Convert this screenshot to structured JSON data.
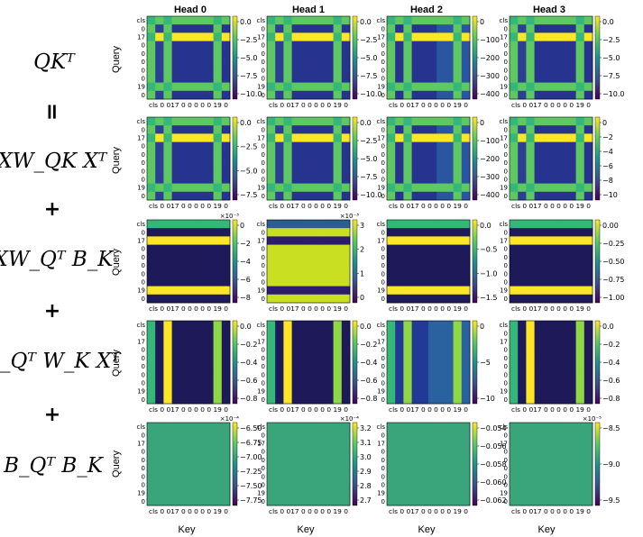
{
  "equations": {
    "lhs": "QKᵀ",
    "equals": "=",
    "term1": "XW_QK Xᵀ",
    "plus": "+",
    "term2": "XW_Qᵀ B_K",
    "term3": "B_Qᵀ W_K Xᵀ",
    "term4": "B_Qᵀ B_K"
  },
  "chart_data": {
    "type": "heatmap",
    "description_rows": [
      "QKᵀ",
      "XW_QK Xᵀ",
      "XW_Qᵀ B_K",
      "B_Qᵀ W_K Xᵀ",
      "B_Qᵀ B_K"
    ],
    "column_titles": [
      "Head 0",
      "Head 1",
      "Head 2",
      "Head 3"
    ],
    "ylabel": "Query",
    "xlabel": "Key",
    "row_tick_labels": [
      "cls",
      "0",
      "17",
      "0",
      "0",
      "0",
      "0",
      "0",
      "19",
      "0"
    ],
    "col_tick_labels": [
      "cls",
      "0",
      "17",
      "0",
      "0",
      "0",
      "0",
      "0",
      "19",
      "0"
    ],
    "col_tick_text": "cls 0 017 0 0 0 0 0 19 0",
    "special_indices": [
      0,
      2,
      8
    ],
    "colormap": "viridis",
    "colormap_colors": [
      "#440154",
      "#3b528b",
      "#21918c",
      "#5ec962",
      "#fde725"
    ],
    "rows": [
      {
        "name": "QKᵀ",
        "panels": [
          {
            "head": "Head 0",
            "pattern": "cross",
            "colorbar_ticks": [
              "0.0",
              "−2.5",
              "−5.0",
              "−7.5",
              "−10.0"
            ],
            "scale": ""
          },
          {
            "head": "Head 1",
            "pattern": "cross",
            "colorbar_ticks": [
              "0.0",
              "−2.5",
              "−5.0",
              "−7.5",
              "−10.0"
            ],
            "scale": ""
          },
          {
            "head": "Head 2",
            "pattern": "cross_wide",
            "colorbar_ticks": [
              "0",
              "−100",
              "−200",
              "−300",
              "−400"
            ],
            "scale": ""
          },
          {
            "head": "Head 3",
            "pattern": "cross",
            "colorbar_ticks": [
              "0.0",
              "−2.5",
              "−5.0",
              "−7.5",
              "−10.0"
            ],
            "scale": ""
          }
        ]
      },
      {
        "name": "XW_QK Xᵀ",
        "panels": [
          {
            "head": "Head 0",
            "pattern": "cross",
            "colorbar_ticks": [
              "0.0",
              "−2.5",
              "−5.0",
              "−7.5"
            ],
            "scale": ""
          },
          {
            "head": "Head 1",
            "pattern": "cross",
            "colorbar_ticks": [
              "0.0",
              "−2.5",
              "−5.0",
              "−7.5",
              "−10.0"
            ],
            "scale": ""
          },
          {
            "head": "Head 2",
            "pattern": "cross_wide",
            "colorbar_ticks": [
              "0",
              "−100",
              "−200",
              "−300",
              "−400"
            ],
            "scale": ""
          },
          {
            "head": "Head 3",
            "pattern": "cross",
            "colorbar_ticks": [
              "0",
              "−2",
              "−4",
              "−6",
              "−8",
              "−10"
            ],
            "scale": ""
          }
        ]
      },
      {
        "name": "XW_Qᵀ B_K",
        "panels": [
          {
            "head": "Head 0",
            "pattern": "hbands",
            "colorbar_ticks": [
              "0",
              "−2",
              "−4",
              "−6",
              "−8"
            ],
            "scale": "×10⁻³"
          },
          {
            "head": "Head 1",
            "pattern": "hbands_inv",
            "colorbar_ticks": [
              "3",
              "2",
              "1",
              "0"
            ],
            "scale": "×10⁻³"
          },
          {
            "head": "Head 2",
            "pattern": "hbands",
            "colorbar_ticks": [
              "0.0",
              "−0.5",
              "−1.0",
              "−1.5"
            ],
            "scale": ""
          },
          {
            "head": "Head 3",
            "pattern": "hbands",
            "colorbar_ticks": [
              "0.00",
              "−0.25",
              "−0.50",
              "−0.75",
              "−1.00"
            ],
            "scale": ""
          }
        ]
      },
      {
        "name": "B_Qᵀ W_K Xᵀ",
        "panels": [
          {
            "head": "Head 0",
            "pattern": "vbands",
            "colorbar_ticks": [
              "0.0",
              "−0.2",
              "−0.4",
              "−0.6",
              "−0.8"
            ],
            "scale": ""
          },
          {
            "head": "Head 1",
            "pattern": "vbands",
            "colorbar_ticks": [
              "0.0",
              "−0.2",
              "−0.4",
              "−0.6",
              "−0.8"
            ],
            "scale": ""
          },
          {
            "head": "Head 2",
            "pattern": "vbands_grad",
            "colorbar_ticks": [
              "0",
              "−5",
              "−10"
            ],
            "scale": ""
          },
          {
            "head": "Head 3",
            "pattern": "vbands",
            "colorbar_ticks": [
              "0.0",
              "−0.2",
              "−0.4",
              "−0.6",
              "−0.8"
            ],
            "scale": ""
          }
        ]
      },
      {
        "name": "B_Qᵀ B_K",
        "panels": [
          {
            "head": "Head 0",
            "pattern": "uniform",
            "colorbar_ticks": [
              "−6.50",
              "−6.75",
              "−7.00",
              "−7.25",
              "−7.50",
              "−7.75"
            ],
            "scale": "×10⁻⁴"
          },
          {
            "head": "Head 1",
            "pattern": "uniform",
            "colorbar_ticks": [
              "3.2",
              "3.1",
              "3.0",
              "2.9",
              "2.8",
              "2.7"
            ],
            "scale": "×10⁻⁴"
          },
          {
            "head": "Head 2",
            "pattern": "uniform",
            "colorbar_ticks": [
              "−0.054",
              "−0.056",
              "−0.058",
              "−0.060",
              "−0.062"
            ],
            "scale": ""
          },
          {
            "head": "Head 3",
            "pattern": "uniform",
            "colorbar_ticks": [
              "−8.5",
              "−9.0",
              "−9.5"
            ],
            "scale": "×10⁻⁵"
          }
        ]
      }
    ]
  }
}
